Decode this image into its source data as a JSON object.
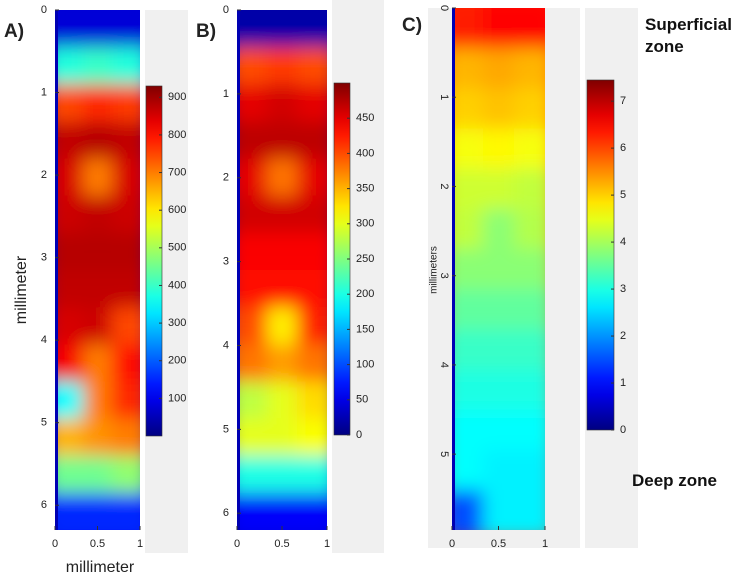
{
  "chart_data": [
    {
      "type": "heatmap",
      "label": "A)",
      "ylabel": "millimeter",
      "xlabel": "millimeter",
      "colormap": "jet",
      "xlim": [
        0,
        1
      ],
      "xticks": [
        0,
        0.5,
        1
      ],
      "ylim": [
        0,
        6.3
      ],
      "yticks": [
        0,
        1,
        2,
        3,
        4,
        5,
        6
      ],
      "y_inverted": true,
      "clim": [
        0,
        930
      ],
      "cticks": [
        100,
        200,
        300,
        400,
        500,
        600,
        700,
        800,
        900
      ],
      "values": [
        [
          80,
          80,
          80
        ],
        [
          380,
          400,
          380
        ],
        [
          750,
          780,
          760
        ],
        [
          870,
          880,
          870
        ],
        [
          850,
          700,
          850
        ],
        [
          860,
          870,
          860
        ],
        [
          880,
          880,
          880
        ],
        [
          870,
          870,
          870
        ],
        [
          850,
          860,
          750
        ],
        [
          820,
          700,
          800
        ],
        [
          350,
          700,
          780
        ],
        [
          650,
          680,
          700
        ],
        [
          450,
          450,
          480
        ],
        [
          150,
          150,
          150
        ]
      ]
    },
    {
      "type": "heatmap",
      "label": "B)",
      "colormap": "jet",
      "xlim": [
        0,
        1
      ],
      "xticks": [
        0,
        0.5,
        1
      ],
      "ylim": [
        0,
        6.2
      ],
      "yticks": [
        0,
        1,
        2,
        3,
        4,
        5,
        6
      ],
      "y_inverted": true,
      "clim": [
        0,
        500
      ],
      "cticks": [
        0,
        50,
        100,
        150,
        200,
        250,
        300,
        350,
        400,
        450
      ],
      "values": [
        [
          20,
          20,
          20
        ],
        [
          400,
          410,
          400
        ],
        [
          450,
          460,
          450
        ],
        [
          470,
          470,
          470
        ],
        [
          450,
          380,
          450
        ],
        [
          460,
          460,
          460
        ],
        [
          440,
          440,
          440
        ],
        [
          430,
          430,
          430
        ],
        [
          400,
          320,
          420
        ],
        [
          380,
          360,
          380
        ],
        [
          280,
          300,
          330
        ],
        [
          300,
          300,
          310
        ],
        [
          200,
          200,
          200
        ],
        [
          60,
          60,
          60
        ]
      ]
    },
    {
      "type": "heatmap",
      "label": "C)",
      "ylabel": "millimeters",
      "colormap": "jet",
      "xlim": [
        0,
        1
      ],
      "xticks": [
        0,
        0.5,
        1
      ],
      "ylim": [
        0,
        5.85
      ],
      "yticks": [
        0,
        1,
        2,
        3,
        4,
        5
      ],
      "y_inverted": true,
      "clim": [
        0,
        7.45
      ],
      "cticks": [
        0,
        1,
        2,
        3,
        4,
        5,
        6,
        7
      ],
      "values": [
        [
          6.3,
          6.5,
          6.5
        ],
        [
          5.2,
          5.3,
          5.2
        ],
        [
          5,
          5.1,
          5
        ],
        [
          4.6,
          4.7,
          4.6
        ],
        [
          4.3,
          4.3,
          4.2
        ],
        [
          4.2,
          3.8,
          4.1
        ],
        [
          3.8,
          3.8,
          3.8
        ],
        [
          3.5,
          3.5,
          3.5
        ],
        [
          3.2,
          3.2,
          3.2
        ],
        [
          3,
          3,
          3
        ],
        [
          2.8,
          2.8,
          2.8
        ],
        [
          2.8,
          2.7,
          2.7
        ],
        [
          1.5,
          2.7,
          2.7
        ]
      ],
      "annotations": [
        "Superficial zone",
        "Deep zone"
      ]
    }
  ]
}
